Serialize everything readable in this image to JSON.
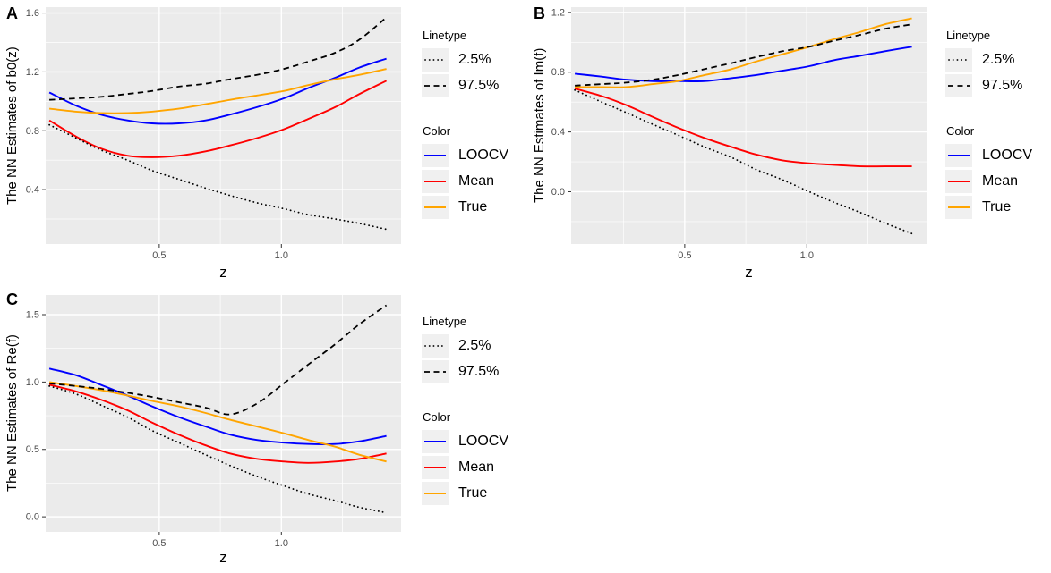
{
  "figure": {
    "background": "#ffffff"
  },
  "colors": {
    "loocv": "#0000ff",
    "mean": "#ff0000",
    "true": "#ffa500",
    "quantile": "#000000",
    "panel_bg": "#ebebeb",
    "grid": "#ffffff",
    "tick_mark": "#333333",
    "tick_text": "#4d4d4d"
  },
  "legend": {
    "position": "right",
    "linetype": {
      "title": "Linetype",
      "items": [
        {
          "label": "2.5%",
          "linetype": "dotted"
        },
        {
          "label": "97.5%",
          "linetype": "dashed"
        }
      ]
    },
    "color": {
      "title": "Color",
      "items": [
        {
          "label": "LOOCV",
          "color": "loocv"
        },
        {
          "label": "Mean",
          "color": "mean"
        },
        {
          "label": "True",
          "color": "true"
        }
      ]
    }
  },
  "chart_data": [
    {
      "type": "line",
      "panel_label": "A",
      "xlabel": "z",
      "ylabel": "The NN Estimates of b0(z)",
      "x": [
        0.05,
        0.16,
        0.26,
        0.37,
        0.47,
        0.58,
        0.69,
        0.79,
        0.9,
        1.01,
        1.11,
        1.22,
        1.32,
        1.43
      ],
      "xlim": [
        0.035,
        1.49
      ],
      "ylim": [
        0.03,
        1.64
      ],
      "xticks": {
        "major": [
          {
            "v": 0.5,
            "label": "0.5"
          },
          {
            "v": 1.0,
            "label": "1.0"
          }
        ],
        "minor": [
          0.25,
          0.75,
          1.25
        ]
      },
      "yticks": {
        "major": [
          {
            "v": 0.4,
            "label": "0.4"
          },
          {
            "v": 0.8,
            "label": "0.8"
          },
          {
            "v": 1.2,
            "label": "1.2"
          },
          {
            "v": 1.6,
            "label": "1.6"
          }
        ],
        "minor": [
          0.2,
          0.6,
          1.0,
          1.4
        ]
      },
      "grid": true,
      "series": [
        {
          "name": "LOOCV",
          "color": "loocv",
          "linetype": "solid",
          "values": [
            1.06,
            0.97,
            0.91,
            0.87,
            0.85,
            0.85,
            0.87,
            0.91,
            0.96,
            1.02,
            1.09,
            1.16,
            1.23,
            1.29
          ]
        },
        {
          "name": "Mean",
          "color": "mean",
          "linetype": "solid",
          "values": [
            0.87,
            0.76,
            0.68,
            0.63,
            0.62,
            0.63,
            0.66,
            0.7,
            0.75,
            0.81,
            0.88,
            0.96,
            1.05,
            1.14
          ]
        },
        {
          "name": "True",
          "color": "true",
          "linetype": "solid",
          "values": [
            0.95,
            0.93,
            0.92,
            0.92,
            0.93,
            0.95,
            0.98,
            1.01,
            1.04,
            1.07,
            1.11,
            1.15,
            1.18,
            1.22
          ]
        },
        {
          "name": "2.5%",
          "color": "quantile",
          "linetype": "dotted",
          "values": [
            0.84,
            0.75,
            0.67,
            0.6,
            0.53,
            0.47,
            0.41,
            0.36,
            0.31,
            0.27,
            0.23,
            0.2,
            0.17,
            0.13
          ]
        },
        {
          "name": "97.5%",
          "color": "quantile",
          "linetype": "dashed",
          "values": [
            1.01,
            1.02,
            1.03,
            1.05,
            1.07,
            1.1,
            1.12,
            1.15,
            1.18,
            1.22,
            1.27,
            1.33,
            1.42,
            1.57
          ]
        }
      ]
    },
    {
      "type": "line",
      "panel_label": "B",
      "xlabel": "z",
      "ylabel": "The NN Estimates of Im(f)",
      "x": [
        0.05,
        0.16,
        0.26,
        0.37,
        0.47,
        0.58,
        0.69,
        0.79,
        0.9,
        1.01,
        1.11,
        1.22,
        1.32,
        1.43
      ],
      "xlim": [
        0.035,
        1.49
      ],
      "ylim": [
        -0.35,
        1.235
      ],
      "xticks": {
        "major": [
          {
            "v": 0.5,
            "label": "0.5"
          },
          {
            "v": 1.0,
            "label": "1.0"
          }
        ],
        "minor": [
          0.25,
          0.75,
          1.25
        ]
      },
      "yticks": {
        "major": [
          {
            "v": 0.0,
            "label": "0.0"
          },
          {
            "v": 0.4,
            "label": "0.4"
          },
          {
            "v": 0.8,
            "label": "0.8"
          },
          {
            "v": 1.2,
            "label": "1.2"
          }
        ],
        "minor": [
          -0.2,
          0.2,
          0.6,
          1.0
        ]
      },
      "grid": true,
      "series": [
        {
          "name": "LOOCV",
          "color": "loocv",
          "linetype": "solid",
          "values": [
            0.79,
            0.77,
            0.75,
            0.74,
            0.74,
            0.74,
            0.76,
            0.78,
            0.81,
            0.84,
            0.88,
            0.91,
            0.94,
            0.97
          ]
        },
        {
          "name": "Mean",
          "color": "mean",
          "linetype": "solid",
          "values": [
            0.69,
            0.64,
            0.58,
            0.5,
            0.43,
            0.36,
            0.3,
            0.25,
            0.21,
            0.19,
            0.18,
            0.17,
            0.17,
            0.17
          ]
        },
        {
          "name": "True",
          "color": "true",
          "linetype": "solid",
          "values": [
            0.7,
            0.7,
            0.7,
            0.72,
            0.74,
            0.78,
            0.82,
            0.87,
            0.92,
            0.97,
            1.02,
            1.07,
            1.12,
            1.16
          ]
        },
        {
          "name": "2.5%",
          "color": "quantile",
          "linetype": "dotted",
          "values": [
            0.68,
            0.6,
            0.53,
            0.45,
            0.38,
            0.3,
            0.23,
            0.15,
            0.08,
            0.0,
            -0.07,
            -0.14,
            -0.21,
            -0.28
          ]
        },
        {
          "name": "97.5%",
          "color": "quantile",
          "linetype": "dashed",
          "values": [
            0.71,
            0.72,
            0.73,
            0.75,
            0.78,
            0.82,
            0.86,
            0.9,
            0.94,
            0.97,
            1.01,
            1.05,
            1.09,
            1.12
          ]
        }
      ]
    },
    {
      "type": "line",
      "panel_label": "C",
      "xlabel": "z",
      "ylabel": "The NN Estimates of Re(f)",
      "x": [
        0.05,
        0.16,
        0.26,
        0.37,
        0.47,
        0.58,
        0.69,
        0.79,
        0.9,
        1.01,
        1.11,
        1.22,
        1.32,
        1.43
      ],
      "xlim": [
        0.035,
        1.49
      ],
      "ylim": [
        -0.112,
        1.646
      ],
      "xticks": {
        "major": [
          {
            "v": 0.5,
            "label": "0.5"
          },
          {
            "v": 1.0,
            "label": "1.0"
          }
        ],
        "minor": [
          0.25,
          0.75,
          1.25
        ]
      },
      "yticks": {
        "major": [
          {
            "v": 0.0,
            "label": "0.0"
          },
          {
            "v": 0.5,
            "label": "0.5"
          },
          {
            "v": 1.0,
            "label": "1.0"
          },
          {
            "v": 1.5,
            "label": "1.5"
          }
        ],
        "minor": [
          0.25,
          0.75,
          1.25
        ]
      },
      "grid": true,
      "series": [
        {
          "name": "LOOCV",
          "color": "loocv",
          "linetype": "solid",
          "values": [
            1.1,
            1.05,
            0.98,
            0.9,
            0.82,
            0.74,
            0.67,
            0.61,
            0.57,
            0.55,
            0.54,
            0.54,
            0.56,
            0.6
          ]
        },
        {
          "name": "Mean",
          "color": "mean",
          "linetype": "solid",
          "values": [
            0.98,
            0.93,
            0.87,
            0.79,
            0.7,
            0.61,
            0.53,
            0.47,
            0.43,
            0.41,
            0.4,
            0.41,
            0.43,
            0.47
          ]
        },
        {
          "name": "True",
          "color": "true",
          "linetype": "solid",
          "values": [
            1.0,
            0.97,
            0.94,
            0.9,
            0.86,
            0.82,
            0.77,
            0.72,
            0.67,
            0.62,
            0.57,
            0.52,
            0.46,
            0.41
          ]
        },
        {
          "name": "2.5%",
          "color": "quantile",
          "linetype": "dotted",
          "values": [
            0.97,
            0.91,
            0.83,
            0.74,
            0.64,
            0.55,
            0.46,
            0.38,
            0.3,
            0.23,
            0.17,
            0.12,
            0.07,
            0.03
          ]
        },
        {
          "name": "97.5%",
          "color": "quantile",
          "linetype": "dashed",
          "values": [
            0.99,
            0.97,
            0.95,
            0.92,
            0.89,
            0.85,
            0.81,
            0.76,
            0.84,
            0.99,
            1.13,
            1.28,
            1.43,
            1.57
          ]
        }
      ]
    }
  ]
}
